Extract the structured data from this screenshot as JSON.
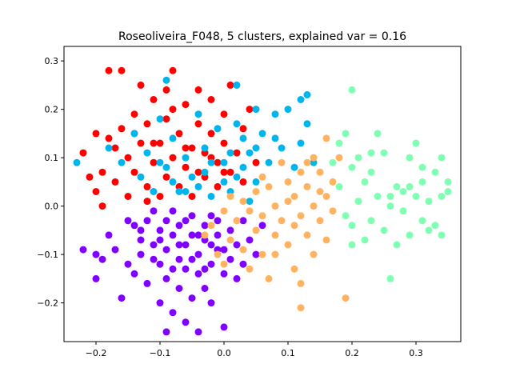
{
  "chart_data": {
    "type": "scatter",
    "title": "Roseoliveira_F048, 5 clusters, explained var = 0.16",
    "xlabel": "",
    "ylabel": "",
    "xlim": [
      -0.25,
      0.37
    ],
    "ylim": [
      -0.28,
      0.33
    ],
    "xticks": [
      -0.2,
      -0.1,
      0.0,
      0.1,
      0.2,
      0.3
    ],
    "xtick_labels": [
      "−0.2",
      "−0.1",
      "0.0",
      "0.1",
      "0.2",
      "0.3"
    ],
    "yticks": [
      -0.2,
      -0.1,
      0.0,
      0.1,
      0.2,
      0.3
    ],
    "ytick_labels": [
      "−0.2",
      "−0.1",
      "0.0",
      "0.1",
      "0.2",
      "0.3"
    ],
    "grid": false,
    "legend": "none",
    "series": [
      {
        "color": "#8000ff",
        "points": [
          [
            -0.22,
            -0.09
          ],
          [
            -0.2,
            -0.1
          ],
          [
            -0.2,
            -0.15
          ],
          [
            -0.19,
            -0.11
          ],
          [
            -0.18,
            -0.06
          ],
          [
            -0.17,
            -0.09
          ],
          [
            -0.16,
            -0.19
          ],
          [
            -0.15,
            -0.12
          ],
          [
            -0.14,
            -0.04
          ],
          [
            -0.13,
            -0.1
          ],
          [
            -0.13,
            -0.07
          ],
          [
            -0.12,
            -0.03
          ],
          [
            -0.12,
            -0.16
          ],
          [
            -0.11,
            -0.01
          ],
          [
            -0.11,
            -0.08
          ],
          [
            -0.1,
            -0.05
          ],
          [
            -0.1,
            -0.2
          ],
          [
            -0.1,
            -0.12
          ],
          [
            -0.09,
            -0.03
          ],
          [
            -0.09,
            -0.09
          ],
          [
            -0.09,
            -0.15
          ],
          [
            -0.09,
            -0.26
          ],
          [
            -0.08,
            -0.06
          ],
          [
            -0.08,
            -0.22
          ],
          [
            -0.08,
            -0.01
          ],
          [
            -0.07,
            -0.11
          ],
          [
            -0.07,
            -0.17
          ],
          [
            -0.07,
            -0.04
          ],
          [
            -0.06,
            -0.08
          ],
          [
            -0.06,
            -0.24
          ],
          [
            -0.06,
            -0.13
          ],
          [
            -0.05,
            -0.02
          ],
          [
            -0.05,
            -0.06
          ],
          [
            -0.05,
            -0.19
          ],
          [
            -0.04,
            -0.1
          ],
          [
            -0.04,
            -0.14
          ],
          [
            -0.04,
            -0.26
          ],
          [
            -0.03,
            -0.04
          ],
          [
            -0.03,
            -0.07
          ],
          [
            -0.03,
            -0.17
          ],
          [
            -0.02,
            -0.12
          ],
          [
            -0.02,
            -0.02
          ],
          [
            -0.02,
            -0.2
          ],
          [
            -0.01,
            -0.06
          ],
          [
            -0.01,
            -0.09
          ],
          [
            0.0,
            -0.14
          ],
          [
            0.0,
            -0.25
          ],
          [
            0.01,
            -0.05
          ],
          [
            0.01,
            -0.11
          ],
          [
            0.02,
            -0.08
          ],
          [
            0.02,
            -0.15
          ],
          [
            0.03,
            -0.03
          ],
          [
            0.03,
            -0.12
          ],
          [
            0.04,
            -0.07
          ],
          [
            0.05,
            -0.1
          ],
          [
            0.06,
            -0.04
          ],
          [
            -0.15,
            -0.03
          ],
          [
            -0.14,
            -0.14
          ],
          [
            -0.13,
            -0.05
          ],
          [
            -0.11,
            -0.11
          ],
          [
            -0.1,
            -0.07
          ],
          [
            -0.08,
            -0.13
          ],
          [
            -0.07,
            -0.08
          ],
          [
            -0.06,
            -0.03
          ],
          [
            -0.05,
            -0.11
          ],
          [
            -0.04,
            -0.06
          ],
          [
            -0.03,
            -0.13
          ],
          [
            -0.02,
            -0.08
          ],
          [
            -0.01,
            -0.03
          ],
          [
            0.0,
            -0.09
          ]
        ]
      },
      {
        "color": "#ff0000",
        "points": [
          [
            -0.22,
            0.11
          ],
          [
            -0.21,
            0.06
          ],
          [
            -0.2,
            0.03
          ],
          [
            -0.2,
            0.15
          ],
          [
            -0.19,
            0.0
          ],
          [
            -0.18,
            0.28
          ],
          [
            -0.18,
            0.14
          ],
          [
            -0.17,
            0.05
          ],
          [
            -0.16,
            0.16
          ],
          [
            -0.16,
            0.28
          ],
          [
            -0.15,
            0.1
          ],
          [
            -0.15,
            0.02
          ],
          [
            -0.14,
            0.19
          ],
          [
            -0.14,
            0.07
          ],
          [
            -0.13,
            0.13
          ],
          [
            -0.13,
            0.25
          ],
          [
            -0.12,
            0.04
          ],
          [
            -0.12,
            0.17
          ],
          [
            -0.11,
            0.09
          ],
          [
            -0.11,
            0.22
          ],
          [
            -0.1,
            0.02
          ],
          [
            -0.1,
            0.13
          ],
          [
            -0.09,
            0.06
          ],
          [
            -0.09,
            0.24
          ],
          [
            -0.09,
            0.18
          ],
          [
            -0.08,
            0.1
          ],
          [
            -0.08,
            0.28
          ],
          [
            -0.07,
            0.04
          ],
          [
            -0.07,
            0.15
          ],
          [
            -0.06,
            0.21
          ],
          [
            -0.06,
            0.08
          ],
          [
            -0.05,
            0.12
          ],
          [
            -0.05,
            0.02
          ],
          [
            -0.04,
            0.17
          ],
          [
            -0.04,
            0.24
          ],
          [
            -0.03,
            0.06
          ],
          [
            -0.03,
            0.11
          ],
          [
            -0.02,
            0.22
          ],
          [
            -0.02,
            0.15
          ],
          [
            -0.01,
            0.09
          ],
          [
            -0.01,
            0.04
          ],
          [
            0.0,
            0.19
          ],
          [
            0.0,
            0.13
          ],
          [
            0.01,
            0.07
          ],
          [
            0.01,
            0.25
          ],
          [
            0.02,
            0.11
          ],
          [
            0.03,
            0.16
          ],
          [
            0.03,
            0.05
          ],
          [
            0.04,
            0.2
          ],
          [
            0.05,
            0.09
          ],
          [
            -0.19,
            0.07
          ],
          [
            -0.17,
            0.12
          ],
          [
            -0.14,
            0.15
          ],
          [
            -0.12,
            0.01
          ],
          [
            -0.11,
            0.13
          ],
          [
            -0.08,
            0.2
          ],
          [
            -0.06,
            0.12
          ],
          [
            -0.04,
            0.07
          ],
          [
            -0.02,
            0.1
          ],
          [
            0.0,
            0.07
          ]
        ]
      },
      {
        "color": "#00b5eb",
        "points": [
          [
            -0.23,
            0.09
          ],
          [
            -0.18,
            0.12
          ],
          [
            -0.16,
            0.09
          ],
          [
            -0.14,
            0.15
          ],
          [
            -0.13,
            0.06
          ],
          [
            -0.12,
            0.11
          ],
          [
            -0.11,
            0.03
          ],
          [
            -0.1,
            0.18
          ],
          [
            -0.09,
            0.26
          ],
          [
            -0.09,
            0.08
          ],
          [
            -0.08,
            0.14
          ],
          [
            -0.07,
            0.03
          ],
          [
            -0.06,
            0.1
          ],
          [
            -0.05,
            0.06
          ],
          [
            -0.04,
            0.19
          ],
          [
            -0.04,
            0.04
          ],
          [
            -0.03,
            0.12
          ],
          [
            -0.02,
            0.02
          ],
          [
            -0.02,
            0.09
          ],
          [
            -0.01,
            0.16
          ],
          [
            0.0,
            0.05
          ],
          [
            0.01,
            0.11
          ],
          [
            0.01,
            0.03
          ],
          [
            0.02,
            0.17
          ],
          [
            0.02,
            0.25
          ],
          [
            0.03,
            0.08
          ],
          [
            0.03,
            0.14
          ],
          [
            0.04,
            0.01
          ],
          [
            0.04,
            0.11
          ],
          [
            0.05,
            0.2
          ],
          [
            0.05,
            0.05
          ],
          [
            0.06,
            0.15
          ],
          [
            0.07,
            0.09
          ],
          [
            0.08,
            0.19
          ],
          [
            0.09,
            0.12
          ],
          [
            0.1,
            0.2
          ],
          [
            0.11,
            0.08
          ],
          [
            0.12,
            0.13
          ],
          [
            0.12,
            0.22
          ],
          [
            0.13,
            0.17
          ],
          [
            0.13,
            0.23
          ],
          [
            0.14,
            0.09
          ],
          [
            -0.1,
            0.09
          ],
          [
            -0.08,
            0.05
          ],
          [
            -0.06,
            0.03
          ],
          [
            -0.03,
            0.07
          ],
          [
            0.0,
            0.09
          ],
          [
            0.02,
            0.06
          ],
          [
            0.05,
            0.12
          ],
          [
            0.08,
            0.14
          ]
        ]
      },
      {
        "color": "#ffb360",
        "points": [
          [
            -0.03,
            -0.06
          ],
          [
            -0.02,
            -0.04
          ],
          [
            -0.01,
            -0.1
          ],
          [
            0.0,
            -0.01
          ],
          [
            0.0,
            -0.12
          ],
          [
            0.01,
            0.02
          ],
          [
            0.01,
            -0.07
          ],
          [
            0.02,
            -0.03
          ],
          [
            0.03,
            0.01
          ],
          [
            0.03,
            -0.09
          ],
          [
            0.04,
            -0.13
          ],
          [
            0.05,
            -0.05
          ],
          [
            0.05,
            0.03
          ],
          [
            0.06,
            -0.02
          ],
          [
            0.06,
            -0.1
          ],
          [
            0.07,
            0.04
          ],
          [
            0.07,
            -0.15
          ],
          [
            0.08,
            -0.06
          ],
          [
            0.08,
            0.0
          ],
          [
            0.09,
            0.09
          ],
          [
            0.09,
            -0.03
          ],
          [
            0.1,
            0.05
          ],
          [
            0.1,
            -0.08
          ],
          [
            0.11,
            0.02
          ],
          [
            0.11,
            -0.13
          ],
          [
            0.12,
            0.07
          ],
          [
            0.12,
            -0.02
          ],
          [
            0.12,
            -0.21
          ],
          [
            0.13,
            0.04
          ],
          [
            0.13,
            -0.06
          ],
          [
            0.14,
            0.1
          ],
          [
            0.14,
            0.0
          ],
          [
            0.15,
            -0.03
          ],
          [
            0.15,
            0.07
          ],
          [
            0.16,
            0.02
          ],
          [
            0.16,
            0.14
          ],
          [
            0.17,
            -0.01
          ],
          [
            0.17,
            0.05
          ],
          [
            0.18,
            0.1
          ],
          [
            0.19,
            -0.19
          ],
          [
            0.04,
            -0.01
          ],
          [
            0.06,
            0.06
          ],
          [
            0.08,
            -0.1
          ],
          [
            0.1,
            0.01
          ],
          [
            0.11,
            -0.04
          ],
          [
            0.13,
            0.09
          ],
          [
            0.14,
            -0.1
          ],
          [
            0.15,
            0.03
          ],
          [
            0.16,
            -0.07
          ],
          [
            0.12,
            -0.16
          ]
        ]
      },
      {
        "color": "#80ffb4",
        "points": [
          [
            0.17,
            0.09
          ],
          [
            0.18,
            0.04
          ],
          [
            0.18,
            0.13
          ],
          [
            0.19,
            -0.02
          ],
          [
            0.19,
            0.15
          ],
          [
            0.2,
            0.08
          ],
          [
            0.2,
            0.24
          ],
          [
            0.2,
            -0.04
          ],
          [
            0.21,
            0.1
          ],
          [
            0.21,
            0.01
          ],
          [
            0.22,
            -0.07
          ],
          [
            0.22,
            0.05
          ],
          [
            0.23,
            0.07
          ],
          [
            0.23,
            -0.03
          ],
          [
            0.24,
            0.15
          ],
          [
            0.24,
            0.02
          ],
          [
            0.25,
            -0.05
          ],
          [
            0.25,
            0.11
          ],
          [
            0.26,
            -0.15
          ],
          [
            0.26,
            0.0
          ],
          [
            0.27,
            0.04
          ],
          [
            0.27,
            -0.08
          ],
          [
            0.28,
            0.03
          ],
          [
            0.28,
            -0.01
          ],
          [
            0.29,
            0.1
          ],
          [
            0.29,
            -0.06
          ],
          [
            0.3,
            0.02
          ],
          [
            0.3,
            0.13
          ],
          [
            0.31,
            -0.03
          ],
          [
            0.31,
            0.05
          ],
          [
            0.32,
            -0.05
          ],
          [
            0.32,
            0.01
          ],
          [
            0.33,
            0.07
          ],
          [
            0.33,
            -0.04
          ],
          [
            0.34,
            0.1
          ],
          [
            0.34,
            -0.06
          ],
          [
            0.35,
            0.03
          ],
          [
            0.35,
            0.05
          ],
          [
            0.2,
            -0.08
          ],
          [
            0.23,
            0.11
          ],
          [
            0.26,
            0.02
          ],
          [
            0.29,
            0.04
          ],
          [
            0.31,
            0.08
          ],
          [
            0.34,
            0.02
          ]
        ]
      }
    ]
  }
}
